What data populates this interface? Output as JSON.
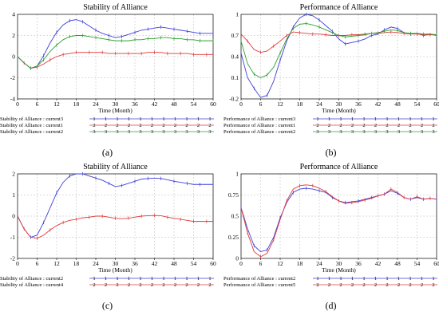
{
  "panels": [
    {
      "letter": "(a)",
      "chart_data": {
        "type": "line",
        "title": "Stability of Alliance",
        "xlabel": "Time (Month)",
        "ylabel": "",
        "xlim": [
          0,
          60
        ],
        "ylim": [
          -4,
          4
        ],
        "xticks": [
          0,
          6,
          12,
          18,
          24,
          30,
          36,
          42,
          48,
          54,
          60
        ],
        "yticks": [
          -4,
          -2,
          0,
          2,
          4
        ],
        "grid": true,
        "legend": "below",
        "x": [
          0,
          2,
          4,
          6,
          8,
          10,
          12,
          14,
          16,
          18,
          20,
          22,
          24,
          26,
          28,
          30,
          32,
          34,
          36,
          38,
          40,
          42,
          44,
          46,
          48,
          50,
          52,
          54,
          56,
          58,
          60
        ],
        "series": [
          {
            "name": "Stability of Alliance : current3",
            "color": "#3f3fd9",
            "marker": "1",
            "values": [
              0,
              -0.6,
              -1.1,
              -0.9,
              0.1,
              1.3,
              2.3,
              3.0,
              3.4,
              3.5,
              3.3,
              2.9,
              2.5,
              2.2,
              2.0,
              1.8,
              1.9,
              2.1,
              2.3,
              2.5,
              2.6,
              2.7,
              2.8,
              2.7,
              2.6,
              2.5,
              2.4,
              2.3,
              2.2,
              2.2,
              2.2
            ]
          },
          {
            "name": "Stability of Alliance : current1",
            "color": "#e03a3a",
            "marker": "2",
            "values": [
              0,
              -0.6,
              -1.1,
              -1.0,
              -0.7,
              -0.3,
              0.0,
              0.2,
              0.3,
              0.4,
              0.4,
              0.4,
              0.4,
              0.4,
              0.3,
              0.3,
              0.3,
              0.3,
              0.3,
              0.3,
              0.4,
              0.4,
              0.4,
              0.3,
              0.3,
              0.3,
              0.3,
              0.2,
              0.2,
              0.2,
              0.2
            ]
          },
          {
            "name": "Stability of Alliance : current2",
            "color": "#2ca02c",
            "marker": "3",
            "values": [
              0,
              -0.6,
              -1.1,
              -0.9,
              -0.3,
              0.5,
              1.1,
              1.6,
              1.9,
              2.0,
              2.0,
              1.9,
              1.8,
              1.7,
              1.6,
              1.5,
              1.5,
              1.5,
              1.6,
              1.6,
              1.7,
              1.7,
              1.8,
              1.8,
              1.7,
              1.7,
              1.6,
              1.6,
              1.5,
              1.5,
              1.5
            ]
          }
        ]
      }
    },
    {
      "letter": "(b)",
      "chart_data": {
        "type": "line",
        "title": "Performance of Alliance",
        "xlabel": "Time (Month)",
        "ylabel": "",
        "xlim": [
          0,
          60
        ],
        "ylim": [
          -0.2,
          1
        ],
        "xticks": [
          0,
          6,
          12,
          18,
          24,
          30,
          36,
          42,
          48,
          54,
          60
        ],
        "yticks": [
          -0.2,
          0.1,
          0.4,
          0.7,
          1
        ],
        "ytick_labels": [
          "-0.2",
          "0.1",
          "0.4",
          "0.7",
          "1"
        ],
        "grid": true,
        "legend": "below",
        "x": [
          0,
          2,
          4,
          6,
          8,
          10,
          12,
          14,
          16,
          18,
          20,
          22,
          24,
          26,
          28,
          30,
          32,
          34,
          36,
          38,
          40,
          42,
          44,
          46,
          48,
          50,
          52,
          54,
          56,
          58,
          60
        ],
        "series": [
          {
            "name": "Performance of Alliance : current3",
            "color": "#3f3fd9",
            "marker": "1",
            "values": [
              0.45,
              0.1,
              -0.05,
              -0.18,
              -0.15,
              0.05,
              0.35,
              0.62,
              0.82,
              0.95,
              1.0,
              0.98,
              0.92,
              0.84,
              0.76,
              0.65,
              0.58,
              0.6,
              0.62,
              0.65,
              0.7,
              0.72,
              0.78,
              0.82,
              0.8,
              0.74,
              0.72,
              0.73,
              0.7,
              0.72,
              0.7
            ]
          },
          {
            "name": "Performance of Alliance : current1",
            "color": "#e03a3a",
            "marker": "2",
            "values": [
              0.72,
              0.62,
              0.5,
              0.46,
              0.48,
              0.55,
              0.62,
              0.7,
              0.75,
              0.74,
              0.73,
              0.72,
              0.72,
              0.71,
              0.7,
              0.7,
              0.7,
              0.71,
              0.71,
              0.72,
              0.73,
              0.73,
              0.74,
              0.75,
              0.74,
              0.73,
              0.72,
              0.72,
              0.71,
              0.71,
              0.71
            ]
          },
          {
            "name": "Performance of Alliance : current2",
            "color": "#2ca02c",
            "marker": "3",
            "values": [
              0.62,
              0.3,
              0.15,
              0.1,
              0.14,
              0.25,
              0.45,
              0.65,
              0.8,
              0.86,
              0.87,
              0.85,
              0.82,
              0.78,
              0.74,
              0.7,
              0.68,
              0.69,
              0.7,
              0.71,
              0.73,
              0.74,
              0.76,
              0.78,
              0.77,
              0.74,
              0.73,
              0.73,
              0.72,
              0.72,
              0.71
            ]
          }
        ]
      }
    },
    {
      "letter": "(c)",
      "chart_data": {
        "type": "line",
        "title": "Stability of Alliance",
        "xlabel": "Time (Month)",
        "ylabel": "",
        "xlim": [
          0,
          60
        ],
        "ylim": [
          -2,
          2
        ],
        "xticks": [
          0,
          6,
          12,
          18,
          24,
          30,
          36,
          42,
          48,
          54,
          60
        ],
        "yticks": [
          -2,
          -1,
          0,
          1,
          2
        ],
        "grid": true,
        "legend": "below",
        "x": [
          0,
          2,
          4,
          6,
          8,
          10,
          12,
          14,
          16,
          18,
          20,
          22,
          24,
          26,
          28,
          30,
          32,
          34,
          36,
          38,
          40,
          42,
          44,
          46,
          48,
          50,
          52,
          54,
          56,
          58,
          60
        ],
        "series": [
          {
            "name": "Stability of Alliance : current2",
            "color": "#3f3fd9",
            "marker": "1",
            "values": [
              0,
              -0.6,
              -1.0,
              -0.9,
              -0.3,
              0.4,
              1.1,
              1.6,
              1.9,
              2.0,
              2.0,
              1.9,
              1.8,
              1.7,
              1.55,
              1.4,
              1.45,
              1.55,
              1.65,
              1.75,
              1.78,
              1.8,
              1.78,
              1.72,
              1.65,
              1.6,
              1.55,
              1.5,
              1.5,
              1.5,
              1.5
            ]
          },
          {
            "name": "Stability of Alliance : current4",
            "color": "#e03a3a",
            "marker": "2",
            "values": [
              0,
              -0.6,
              -1.0,
              -1.05,
              -0.9,
              -0.65,
              -0.45,
              -0.3,
              -0.2,
              -0.15,
              -0.08,
              -0.05,
              0.0,
              0.0,
              -0.05,
              -0.1,
              -0.12,
              -0.1,
              -0.05,
              0.0,
              0.02,
              0.03,
              0.02,
              -0.05,
              -0.1,
              -0.15,
              -0.2,
              -0.25,
              -0.25,
              -0.25,
              -0.25
            ]
          }
        ]
      }
    },
    {
      "letter": "(d)",
      "chart_data": {
        "type": "line",
        "title": "Performance of Alliance",
        "xlabel": "Time (Month)",
        "ylabel": "",
        "xlim": [
          0,
          60
        ],
        "ylim": [
          0,
          1
        ],
        "xticks": [
          0,
          6,
          12,
          18,
          24,
          30,
          36,
          42,
          48,
          54,
          60
        ],
        "yticks": [
          0,
          0.25,
          0.5,
          0.75,
          1
        ],
        "ytick_labels": [
          "0",
          "0.25",
          "0.5",
          "0.75",
          "1"
        ],
        "grid": true,
        "legend": "below",
        "x": [
          0,
          2,
          4,
          6,
          8,
          10,
          12,
          14,
          16,
          18,
          20,
          22,
          24,
          26,
          28,
          30,
          32,
          34,
          36,
          38,
          40,
          42,
          44,
          46,
          48,
          50,
          52,
          54,
          56,
          58,
          60
        ],
        "series": [
          {
            "name": "Performance of Alliance : current2",
            "color": "#3f3fd9",
            "marker": "1",
            "values": [
              0.6,
              0.35,
              0.15,
              0.08,
              0.1,
              0.25,
              0.48,
              0.66,
              0.78,
              0.82,
              0.83,
              0.82,
              0.8,
              0.78,
              0.72,
              0.68,
              0.66,
              0.67,
              0.68,
              0.7,
              0.72,
              0.74,
              0.76,
              0.8,
              0.77,
              0.72,
              0.7,
              0.72,
              0.7,
              0.71,
              0.7
            ]
          },
          {
            "name": "Performance of Alliance : current5",
            "color": "#e03a3a",
            "marker": "2",
            "values": [
              0.6,
              0.3,
              0.08,
              0.02,
              0.06,
              0.22,
              0.46,
              0.68,
              0.82,
              0.86,
              0.87,
              0.86,
              0.83,
              0.79,
              0.73,
              0.68,
              0.65,
              0.66,
              0.67,
              0.69,
              0.71,
              0.74,
              0.76,
              0.82,
              0.78,
              0.72,
              0.7,
              0.73,
              0.7,
              0.71,
              0.7
            ]
          }
        ]
      }
    }
  ]
}
